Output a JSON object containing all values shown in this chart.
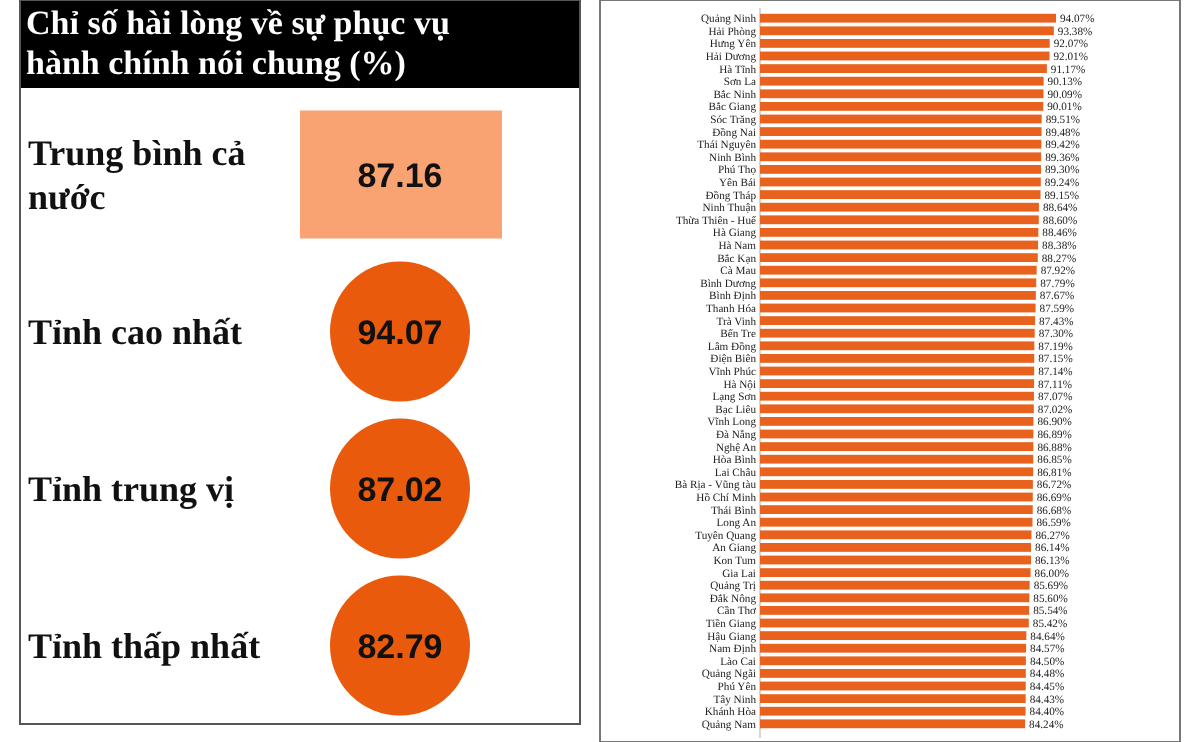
{
  "chart_data": [
    {
      "type": "other",
      "title": "Chỉ số hài lòng về sự phục vụ hành chính nói chung (%)",
      "categories": [
        "Trung bình cả nước",
        "Tỉnh cao nhất",
        "Tỉnh trung vị",
        "Tỉnh thấp nhất"
      ],
      "values": [
        87.16,
        94.07,
        87.02,
        82.79
      ],
      "colors": [
        "#f9a272",
        "#ea5a0c",
        "#ea5a0c",
        "#ea5a0c"
      ],
      "data_labels": true
    },
    {
      "type": "bar",
      "orientation": "horizontal",
      "color": "#e8621d",
      "categories": [
        "Quảng Ninh",
        "Hải Phòng",
        "Hưng Yên",
        "Hải Dương",
        "Hà Tĩnh",
        "Sơn La",
        "Bắc Ninh",
        "Bắc Giang",
        "Sóc Trăng",
        "Đồng Nai",
        "Thái Nguyên",
        "Ninh Bình",
        "Phú Thọ",
        "Yên Bái",
        "Đồng Tháp",
        "Ninh Thuận",
        "Thừa Thiên - Huế",
        "Hà Giang",
        "Hà Nam",
        "Bắc Kạn",
        "Cà Mau",
        "Bình Dương",
        "Bình Định",
        "Thanh Hóa",
        "Trà Vinh",
        "Bến Tre",
        "Lâm Đồng",
        "Điện Biên",
        "Vĩnh Phúc",
        "Hà Nội",
        "Lạng Sơn",
        "Bạc Liêu",
        "Vĩnh Long",
        "Đà Nẵng",
        "Nghệ An",
        "Hòa Bình",
        "Lai Châu",
        "Bà Rịa - Vũng tàu",
        "Hồ Chí Minh",
        "Thái Bình",
        "Long An",
        "Tuyên Quang",
        "An Giang",
        "Kon Tum",
        "Gia Lai",
        "Quảng Trị",
        "Đắk Nông",
        "Cần Thơ",
        "Tiền Giang",
        "Hậu Giang",
        "Nam Định",
        "Lào Cai",
        "Quảng Ngãi",
        "Phú Yên",
        "Tây Ninh",
        "Khánh Hòa",
        "Quảng Nam"
      ],
      "values": [
        94.07,
        93.38,
        92.07,
        92.01,
        91.17,
        90.13,
        90.09,
        90.01,
        89.51,
        89.48,
        89.42,
        89.36,
        89.3,
        89.24,
        89.15,
        88.64,
        88.6,
        88.46,
        88.38,
        88.27,
        87.92,
        87.79,
        87.67,
        87.59,
        87.43,
        87.3,
        87.19,
        87.15,
        87.14,
        87.11,
        87.07,
        87.02,
        86.9,
        86.89,
        86.88,
        86.85,
        86.81,
        86.72,
        86.69,
        86.68,
        86.59,
        86.27,
        86.14,
        86.13,
        86.0,
        85.69,
        85.6,
        85.54,
        85.42,
        84.64,
        84.57,
        84.5,
        84.48,
        84.45,
        84.43,
        84.4,
        84.24
      ],
      "value_labels": [
        "94.07%",
        "93.38%",
        "92.07%",
        "92.01%",
        "91.17%",
        "90.13%",
        "90.09%",
        "90.01%",
        "89.51%",
        "89.48%",
        "89.42%",
        "89.36%",
        "89.30%",
        "89.24%",
        "89.15%",
        "88.64%",
        "88.60%",
        "88.46%",
        "88.38%",
        "88.27%",
        "87.92%",
        "87.79%",
        "87.67%",
        "87.59%",
        "87.43%",
        "87.30%",
        "87.19%",
        "87.15%",
        "87.14%",
        "87.11%",
        "87.07%",
        "87.02%",
        "86.90%",
        "86.89%",
        "86.88%",
        "86.85%",
        "86.81%",
        "86.72%",
        "86.69%",
        "86.68%",
        "86.59%",
        "86.27%",
        "86.14%",
        "86.13%",
        "86.00%",
        "85.69%",
        "85.60%",
        "85.54%",
        "85.42%",
        "84.64%",
        "84.57%",
        "84.50%",
        "84.48%",
        "84.45%",
        "84.43%",
        "84.40%",
        "84.24%"
      ]
    }
  ]
}
